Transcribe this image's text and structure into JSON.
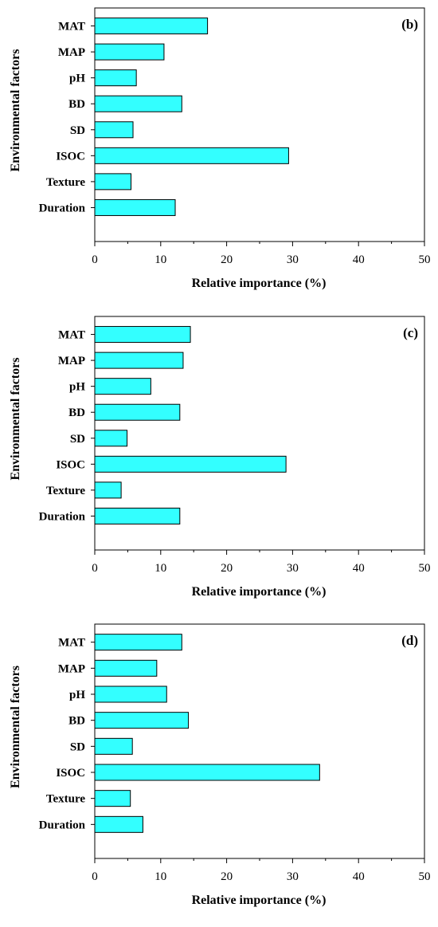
{
  "chart_data": [
    {
      "type": "bar",
      "orientation": "horizontal",
      "panel_label": "(b)",
      "categories": [
        "MAT",
        "MAP",
        "pH",
        "BD",
        "SD",
        "ISOC",
        "Texture",
        "Duration"
      ],
      "values": [
        17.1,
        10.5,
        6.3,
        13.2,
        5.8,
        29.4,
        5.5,
        12.2
      ],
      "xlabel": "Relative importance (%)",
      "ylabel": "Environmental factors",
      "xlim": [
        0,
        50
      ],
      "xticks": [
        "0",
        "10",
        "20",
        "30",
        "40",
        "50"
      ],
      "bar_color": "#33ffff",
      "grid": false
    },
    {
      "type": "bar",
      "orientation": "horizontal",
      "panel_label": "(c)",
      "categories": [
        "MAT",
        "MAP",
        "pH",
        "BD",
        "SD",
        "ISOC",
        "Texture",
        "Duration"
      ],
      "values": [
        14.5,
        13.4,
        8.5,
        12.9,
        4.9,
        29.0,
        4.0,
        12.9
      ],
      "xlabel": "Relative importance (%)",
      "ylabel": "Environmental factors",
      "xlim": [
        0,
        50
      ],
      "xticks": [
        "0",
        "10",
        "20",
        "30",
        "40",
        "50"
      ],
      "bar_color": "#33ffff",
      "grid": false
    },
    {
      "type": "bar",
      "orientation": "horizontal",
      "panel_label": "(d)",
      "categories": [
        "MAT",
        "MAP",
        "pH",
        "BD",
        "SD",
        "ISOC",
        "Texture",
        "Duration"
      ],
      "values": [
        13.2,
        9.4,
        10.9,
        14.2,
        5.7,
        34.1,
        5.4,
        7.3
      ],
      "xlabel": "Relative importance (%)",
      "ylabel": "Environmental factors",
      "xlim": [
        0,
        50
      ],
      "xticks": [
        "0",
        "10",
        "20",
        "30",
        "40",
        "50"
      ],
      "bar_color": "#33ffff",
      "grid": false
    }
  ]
}
